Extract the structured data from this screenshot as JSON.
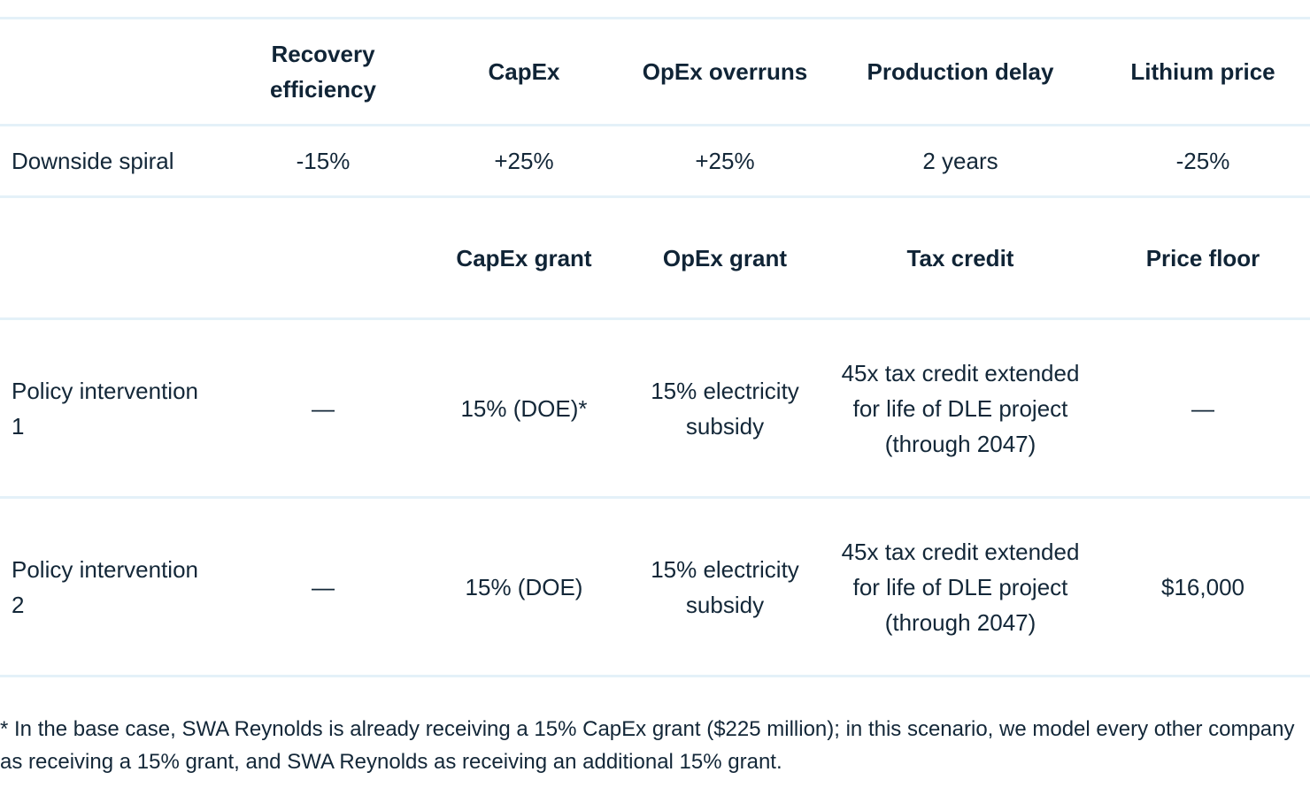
{
  "table": {
    "header1": {
      "col0": "",
      "col1": "Recovery efficiency",
      "col2": "CapEx",
      "col3": "OpEx overruns",
      "col4": "Production delay",
      "col5": "Lithium price"
    },
    "row1": {
      "label": "Downside spiral",
      "col1": "-15%",
      "col2": "+25%",
      "col3": "+25%",
      "col4": "2 years",
      "col5": "-25%"
    },
    "header2": {
      "col0": "",
      "col1": "",
      "col2": "CapEx grant",
      "col3": "OpEx grant",
      "col4": "Tax credit",
      "col5": "Price floor"
    },
    "row2": {
      "label": "Policy intervention 1",
      "col1": "—",
      "col2": "15% (DOE)*",
      "col3": "15% electricity subsidy",
      "col4": "45x tax credit extended for life of DLE project (through 2047)",
      "col5": "—"
    },
    "row3": {
      "label": "Policy intervention 2",
      "col1": "—",
      "col2": "15% (DOE)",
      "col3": "15% electricity subsidy",
      "col4": "45x tax credit extended for life of DLE project (through 2047)",
      "col5": "$16,000"
    }
  },
  "footnote": "* In the base case, SWA Reynolds is already receiving a 15% CapEx grant ($225 million); in this scenario, we model every other company as receiving a 15% grant, and SWA Reynolds as receiving an additional 15% grant.",
  "colors": {
    "text": "#0f2233",
    "rule": "#e4f1f8",
    "background": "#ffffff"
  }
}
